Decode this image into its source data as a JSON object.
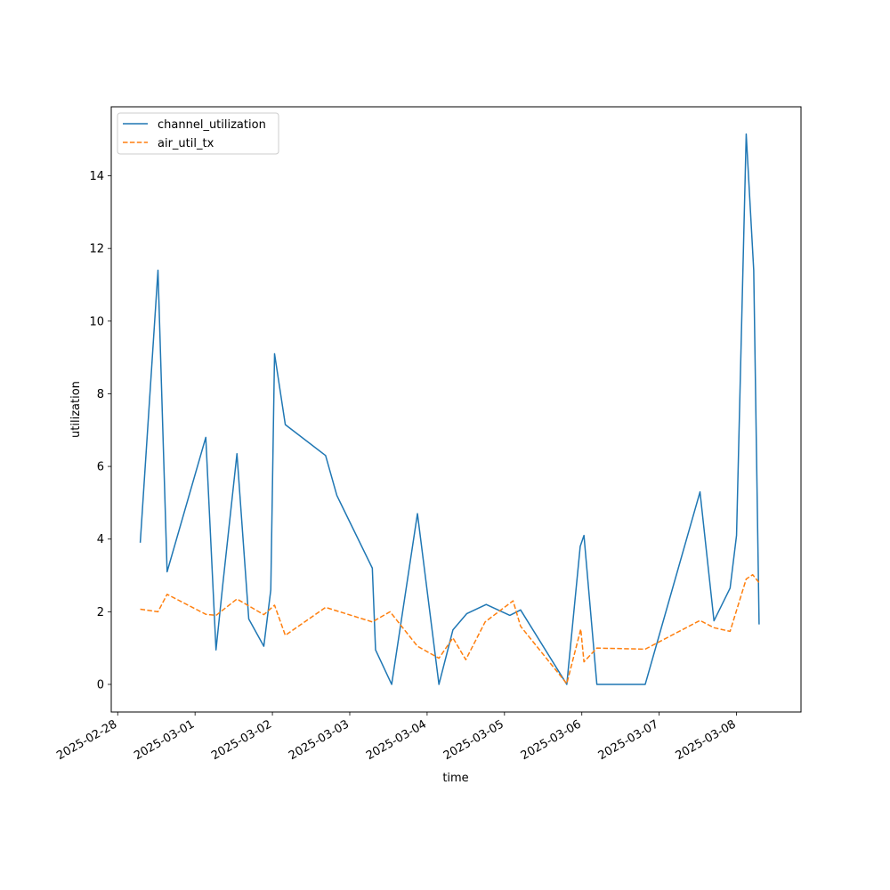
{
  "chart_data": {
    "type": "line",
    "title": "",
    "xlabel": "time",
    "ylabel": "utilization",
    "x_axis": {
      "type": "date",
      "range": [
        "2025-02-27T22:00",
        "2025-03-08T20:00"
      ],
      "ticks": [
        "2025-02-28",
        "2025-03-01",
        "2025-03-02",
        "2025-03-03",
        "2025-03-04",
        "2025-03-05",
        "2025-03-06",
        "2025-03-07",
        "2025-03-08"
      ]
    },
    "y_axis": {
      "range": [
        -0.76,
        15.9
      ],
      "ticks": [
        0,
        2,
        4,
        6,
        8,
        10,
        12,
        14
      ]
    },
    "grid": false,
    "legend": {
      "placement": "top-left",
      "entries": [
        "channel_utilization",
        "air_util_tx"
      ]
    },
    "series": [
      {
        "name": "channel_utilization",
        "color": "#1f77b4",
        "style": "solid",
        "points": [
          [
            "2025-02-28T07:00",
            3.9
          ],
          [
            "2025-02-28T12:30",
            11.4
          ],
          [
            "2025-02-28T15:20",
            3.1
          ],
          [
            "2025-03-01T03:20",
            6.8
          ],
          [
            "2025-03-01T06:30",
            0.95
          ],
          [
            "2025-03-01T08:40",
            2.8
          ],
          [
            "2025-03-01T13:00",
            6.35
          ],
          [
            "2025-03-01T16:40",
            1.8
          ],
          [
            "2025-03-01T21:20",
            1.05
          ],
          [
            "2025-03-01T23:30",
            2.6
          ],
          [
            "2025-03-02T00:40",
            9.1
          ],
          [
            "2025-03-02T04:00",
            7.15
          ],
          [
            "2025-03-02T16:30",
            6.3
          ],
          [
            "2025-03-02T20:00",
            5.2
          ],
          [
            "2025-03-03T07:00",
            3.2
          ],
          [
            "2025-03-03T08:00",
            0.95
          ],
          [
            "2025-03-03T13:00",
            0.0
          ],
          [
            "2025-03-03T21:00",
            4.7
          ],
          [
            "2025-03-04T03:40",
            0.0
          ],
          [
            "2025-03-04T08:00",
            1.5
          ],
          [
            "2025-03-04T12:20",
            1.95
          ],
          [
            "2025-03-04T18:20",
            2.2
          ],
          [
            "2025-03-05T01:40",
            1.9
          ],
          [
            "2025-03-05T05:00",
            2.05
          ],
          [
            "2025-03-05T19:20",
            0.0
          ],
          [
            "2025-03-05T23:30",
            3.8
          ],
          [
            "2025-03-06T00:40",
            4.1
          ],
          [
            "2025-03-06T04:40",
            0.0
          ],
          [
            "2025-03-06T19:40",
            0.0
          ],
          [
            "2025-03-07T12:40",
            5.3
          ],
          [
            "2025-03-07T17:00",
            1.75
          ],
          [
            "2025-03-07T22:00",
            2.65
          ],
          [
            "2025-03-08T00:00",
            4.1
          ],
          [
            "2025-03-08T03:00",
            15.15
          ],
          [
            "2025-03-08T05:20",
            11.4
          ],
          [
            "2025-03-08T07:00",
            1.65
          ]
        ]
      },
      {
        "name": "air_util_tx",
        "color": "#ff7f0e",
        "style": "dashed",
        "points": [
          [
            "2025-02-28T07:00",
            2.07
          ],
          [
            "2025-02-28T12:30",
            2.0
          ],
          [
            "2025-02-28T15:20",
            2.48
          ],
          [
            "2025-03-01T03:20",
            1.93
          ],
          [
            "2025-03-01T06:30",
            1.9
          ],
          [
            "2025-03-01T13:00",
            2.35
          ],
          [
            "2025-03-01T21:20",
            1.92
          ],
          [
            "2025-03-02T00:40",
            2.18
          ],
          [
            "2025-03-02T04:00",
            1.35
          ],
          [
            "2025-03-02T16:30",
            2.12
          ],
          [
            "2025-03-03T07:00",
            1.72
          ],
          [
            "2025-03-03T12:30",
            2.0
          ],
          [
            "2025-03-03T21:00",
            1.05
          ],
          [
            "2025-03-04T03:40",
            0.72
          ],
          [
            "2025-03-04T08:00",
            1.28
          ],
          [
            "2025-03-04T12:00",
            0.68
          ],
          [
            "2025-03-04T18:00",
            1.72
          ],
          [
            "2025-03-05T02:40",
            2.3
          ],
          [
            "2025-03-05T05:00",
            1.6
          ],
          [
            "2025-03-05T19:20",
            0.02
          ],
          [
            "2025-03-05T23:40",
            1.52
          ],
          [
            "2025-03-06T00:40",
            0.62
          ],
          [
            "2025-03-06T04:40",
            1.0
          ],
          [
            "2025-03-06T19:40",
            0.97
          ],
          [
            "2025-03-07T12:40",
            1.76
          ],
          [
            "2025-03-07T17:00",
            1.56
          ],
          [
            "2025-03-07T22:00",
            1.46
          ],
          [
            "2025-03-08T03:00",
            2.9
          ],
          [
            "2025-03-08T05:00",
            3.02
          ],
          [
            "2025-03-08T07:00",
            2.8
          ]
        ]
      }
    ]
  }
}
